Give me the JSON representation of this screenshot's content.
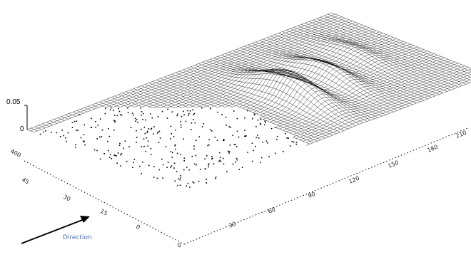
{
  "chart_data": {
    "type": "surface",
    "title": "",
    "z_axis": {
      "ticks": [
        "0.05",
        "0"
      ]
    },
    "left_axis": {
      "ticks": [
        "400",
        "45",
        "30",
        "15",
        "0"
      ]
    },
    "right_axis": {
      "ticks": [
        "0",
        "30",
        "60",
        "90",
        "120",
        "150",
        "180",
        "210"
      ]
    },
    "arrow_label": "Direction",
    "grid": {
      "rows": 46,
      "cols": 80
    },
    "colors": {
      "mesh": "#000000",
      "background": "#ffffff"
    },
    "surface_features": [
      {
        "name": "primary-ridge",
        "peak_z": 0.05
      },
      {
        "name": "secondary-ridge",
        "peak_z": 0.03
      },
      {
        "name": "scattered-noise-region",
        "peak_z": 0.0
      }
    ]
  }
}
